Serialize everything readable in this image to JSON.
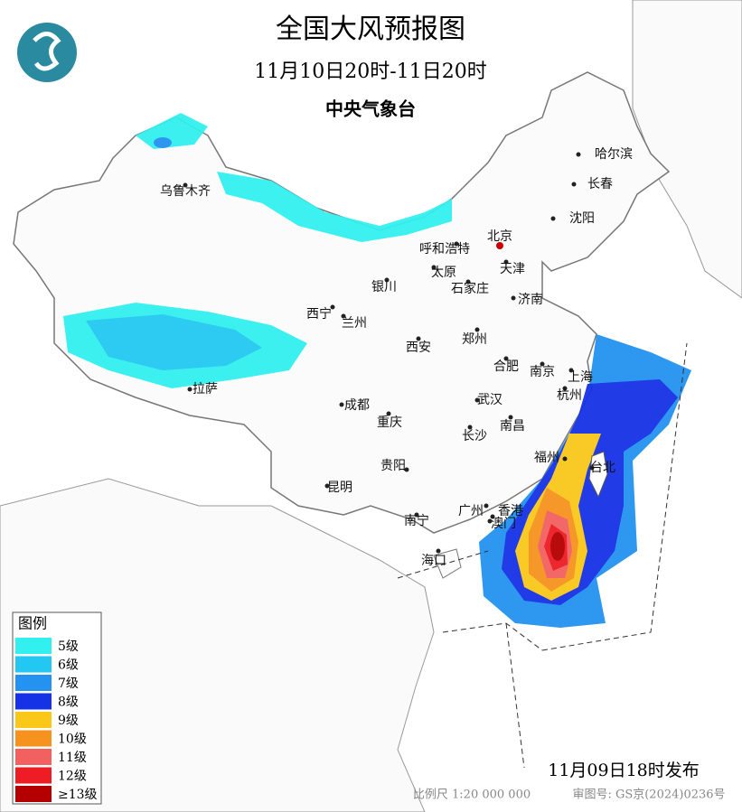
{
  "header": {
    "title": "全国大风预报图",
    "period": "11月10日20时-11日20时",
    "issuer": "中央气象台"
  },
  "cities": [
    "乌鲁木齐",
    "哈尔滨",
    "长春",
    "沈阳",
    "北京",
    "呼和浩特",
    "天津",
    "太原",
    "石家庄",
    "银川",
    "济南",
    "西宁",
    "兰州",
    "郑州",
    "西安",
    "合肥",
    "南京",
    "上海",
    "拉萨",
    "杭州",
    "成都",
    "武汉",
    "重庆",
    "南昌",
    "长沙",
    "福州",
    "台北",
    "贵阳",
    "昆明",
    "广州",
    "香港",
    "澳门",
    "南宁",
    "海口"
  ],
  "legend": {
    "title": "图例",
    "items": [
      {
        "label": "5级",
        "color": "#33f0f0"
      },
      {
        "label": "6级",
        "color": "#22c8f2"
      },
      {
        "label": "7级",
        "color": "#2392f0"
      },
      {
        "label": "8级",
        "color": "#1632e6"
      },
      {
        "label": "9级",
        "color": "#f9c81a"
      },
      {
        "label": "10级",
        "color": "#f6921e"
      },
      {
        "label": "11级",
        "color": "#f26060"
      },
      {
        "label": "12级",
        "color": "#ee1c24"
      },
      {
        "label": "≥13级",
        "color": "#b50000"
      }
    ]
  },
  "footer": {
    "published": "11月09日18时发布",
    "scale": "比例尺 1:20 000 000",
    "approval": "审图号: GS京(2024)0236号"
  }
}
